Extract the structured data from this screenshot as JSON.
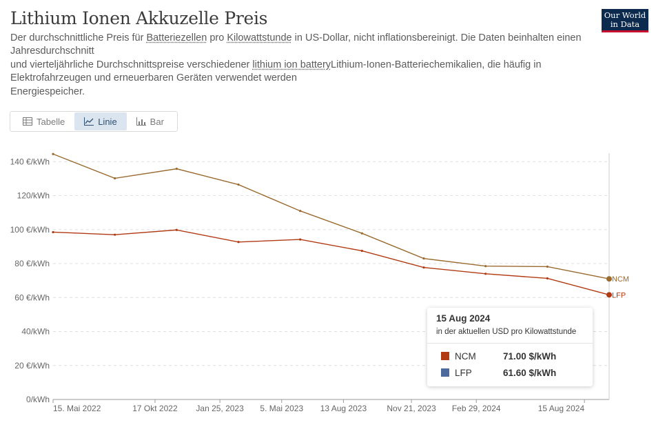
{
  "header": {
    "title": "Lithium Ionen Akkuzelle Preis",
    "logo_line1": "Our World",
    "logo_line2": "in Data",
    "subtitle_p1": "Der durchschnittliche Preis für ",
    "subtitle_link1": "Batteriezellen",
    "subtitle_p2": " pro ",
    "subtitle_link2": "Kilowattstunde",
    "subtitle_p3": " in US-Dollar, nicht inflationsbereinigt. Die Daten beinhalten einen",
    "subtitle_line2": "Jahresdurchschnitt",
    "subtitle_p4": "und vierteljährliche Durchschnittspreise verschiedener ",
    "subtitle_link3": "lithium ion battery",
    "subtitle_p5": "Lithium-Ionen-Batteriechemikalien, die häufig in",
    "subtitle_line4": "Elektrofahrzeugen und erneuerbaren Geräten verwendet werden",
    "subtitle_line5": "Energiespeicher."
  },
  "tabs": [
    {
      "label": "Tabelle",
      "icon": "table-icon"
    },
    {
      "label": "Linie",
      "icon": "line-chart-icon"
    },
    {
      "label": "Bar",
      "icon": "bar-chart-icon"
    }
  ],
  "colors": {
    "ncm": "#9a6a2f",
    "lfp": "#b13a12",
    "lfp_legend": "#4c6a9c",
    "grid": "#dddddd",
    "axis": "#666666"
  },
  "chart_data": {
    "type": "line",
    "title": "Lithium Ionen Akkuzelle Preis",
    "x_positions": [
      0,
      1,
      2,
      3,
      4,
      5,
      6,
      7,
      8,
      9
    ],
    "x_ticks": [
      {
        "pos": 0,
        "label": "15. Mai 2022"
      },
      {
        "pos": 1.65,
        "label": "17 Okt 2022"
      },
      {
        "pos": 2.7,
        "label": "Jan 25, 2023"
      },
      {
        "pos": 3.7,
        "label": "5. Mai 2023"
      },
      {
        "pos": 4.7,
        "label": "13 Aug 2023"
      },
      {
        "pos": 5.8,
        "label": "Nov 21, 2023"
      },
      {
        "pos": 6.85,
        "label": "Feb 29, 2024"
      },
      {
        "pos": 8.6,
        "label": "15 Aug 2024"
      }
    ],
    "y_ticks": [
      0,
      20,
      40,
      60,
      80,
      100,
      120,
      140
    ],
    "y_tick_labels": [
      "0/kWh",
      "20 €/kWh",
      "40/kWh",
      "60 €/kWh",
      "80 €/kWh",
      "100 €/kWh",
      "120/kWh",
      "140 €/kWh"
    ],
    "ylim": [
      0,
      145
    ],
    "series": [
      {
        "name": "NCM",
        "end_label": "NCM",
        "values": [
          144.5,
          130.2,
          135.8,
          126.5,
          111.0,
          97.8,
          83.0,
          78.5,
          78.2,
          71.0
        ]
      },
      {
        "name": "LFP",
        "end_label": "LFP",
        "values": [
          98.5,
          97.0,
          99.8,
          92.7,
          94.2,
          87.5,
          77.7,
          74.0,
          71.3,
          61.6
        ]
      }
    ]
  },
  "tooltip": {
    "date": "15 Aug 2024",
    "unit": "in der aktuellen USD pro Kilowattstunde",
    "rows": [
      {
        "name": "NCM",
        "value": "71.00 $/kWh"
      },
      {
        "name": "LFP",
        "value": "61.60 $/kWh"
      }
    ]
  }
}
